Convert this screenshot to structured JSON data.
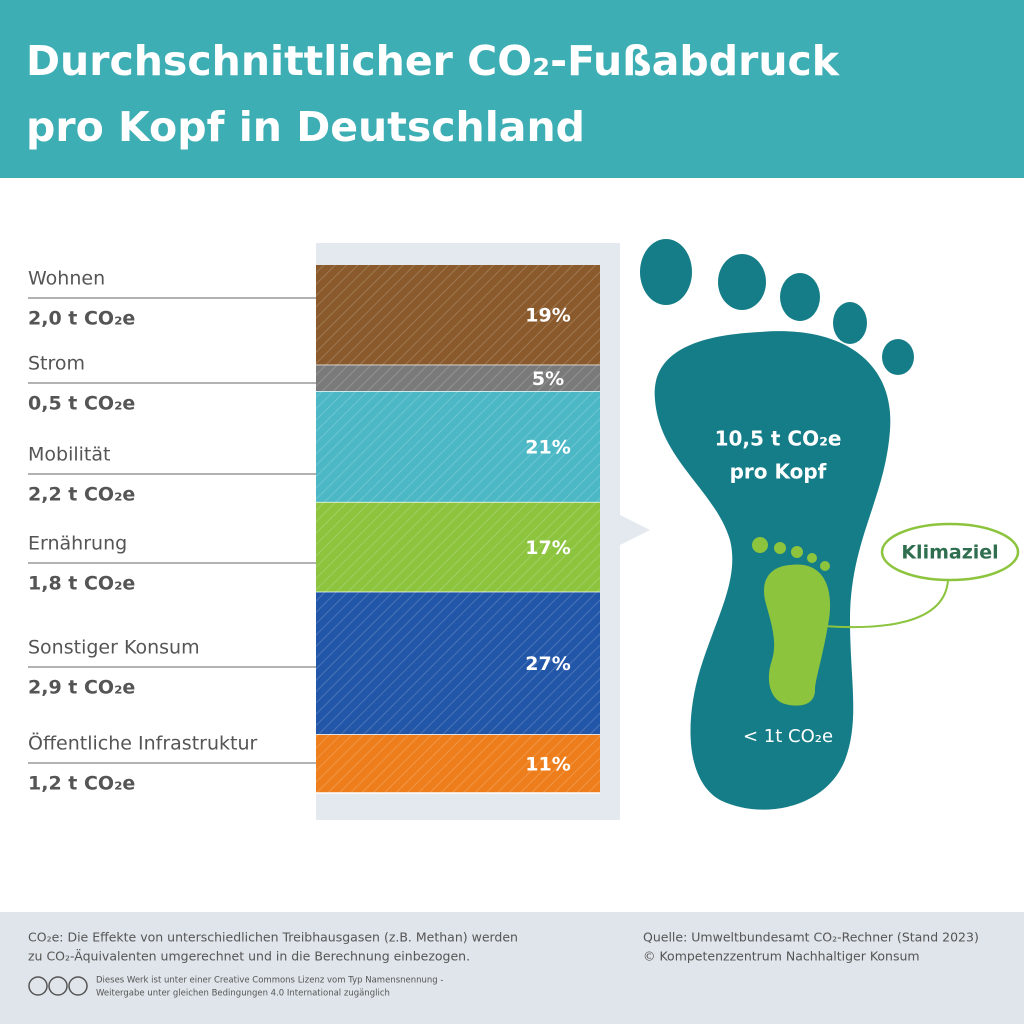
{
  "chart_data": {
    "type": "stacked_bar",
    "title": [
      "Durchschnittlicher CO₂-Fußabdruck",
      "pro Kopf in Deutschland"
    ],
    "categories": [
      "Wohnen",
      "Strom",
      "Mobilität",
      "Ernährung",
      "Sonstiger Konsum",
      "Öffentliche Infrastruktur"
    ],
    "amounts": [
      "2,0 t CO₂e",
      "0,5 t CO₂e",
      "2,2 t CO₂e",
      "1,8 t CO₂e",
      "2,9 t CO₂e",
      "1,2 t CO₂e"
    ],
    "values": [
      19,
      5,
      21,
      17,
      27,
      11
    ],
    "value_labels": [
      "19%",
      "5%",
      "21%",
      "17%",
      "27%",
      "11%"
    ],
    "colors": [
      "#8a5a2c",
      "#7a7a7a",
      "#4cb8c6",
      "#8cc43e",
      "#2256a8",
      "#ee7e1c"
    ],
    "footprint_total": [
      "10,5 t CO₂e",
      "pro Kopf"
    ],
    "target_label": "Klimaziel",
    "target_value": "< 1t CO₂e",
    "note": [
      "CO₂e: Die Effekte von unterschiedlichen Treibhausgasen (z.B. Methan) werden",
      "zu CO₂-Äquivalenten umgerechnet und in die Berechnung einbezogen."
    ],
    "source": [
      "Quelle: Umweltbundesamt CO₂-Rechner (Stand 2023)",
      "© Kompetenzzentrum Nachhaltiger Konsum"
    ],
    "license": [
      "Dieses Werk ist unter einer Creative Commons Lizenz vom Typ Namensnennung -",
      "Weitergabe unter gleichen Bedingungen 4.0 International zugänglich"
    ]
  }
}
